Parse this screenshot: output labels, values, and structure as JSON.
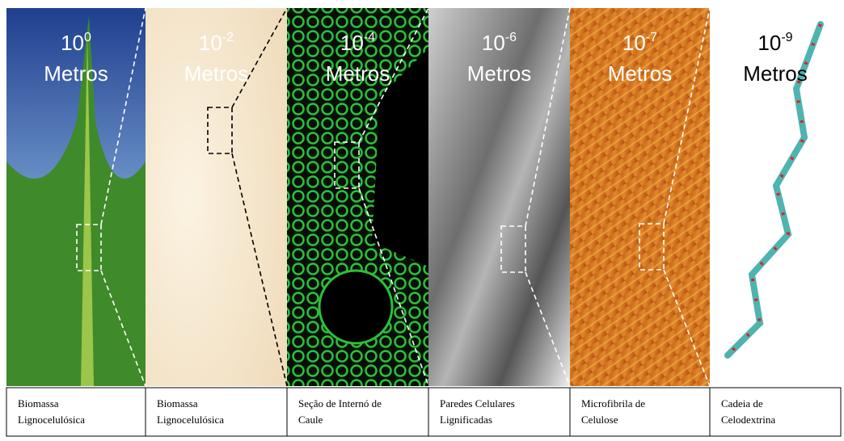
{
  "panels": [
    {
      "base": "10",
      "exponent": "0",
      "unit": "Metros",
      "caption": [
        "Biomassa",
        "Lignocelulósica"
      ]
    },
    {
      "base": "10",
      "exponent": "-2",
      "unit": "Metros",
      "caption": [
        "Biomassa",
        "Lignocelulósica"
      ]
    },
    {
      "base": "10",
      "exponent": "-4",
      "unit": "Metros",
      "caption": [
        "Seção de Internó de",
        "Caule"
      ]
    },
    {
      "base": "10",
      "exponent": "-6",
      "unit": "Metros",
      "caption": [
        "Paredes Celulares",
        "Lignificadas"
      ]
    },
    {
      "base": "10",
      "exponent": "-7",
      "unit": "Metros",
      "caption": [
        "Microfibrila de",
        "Celulose"
      ]
    },
    {
      "base": "10",
      "exponent": "-9",
      "unit": "Metros",
      "caption": [
        "Cadeia de",
        "Celodextrina"
      ]
    }
  ]
}
